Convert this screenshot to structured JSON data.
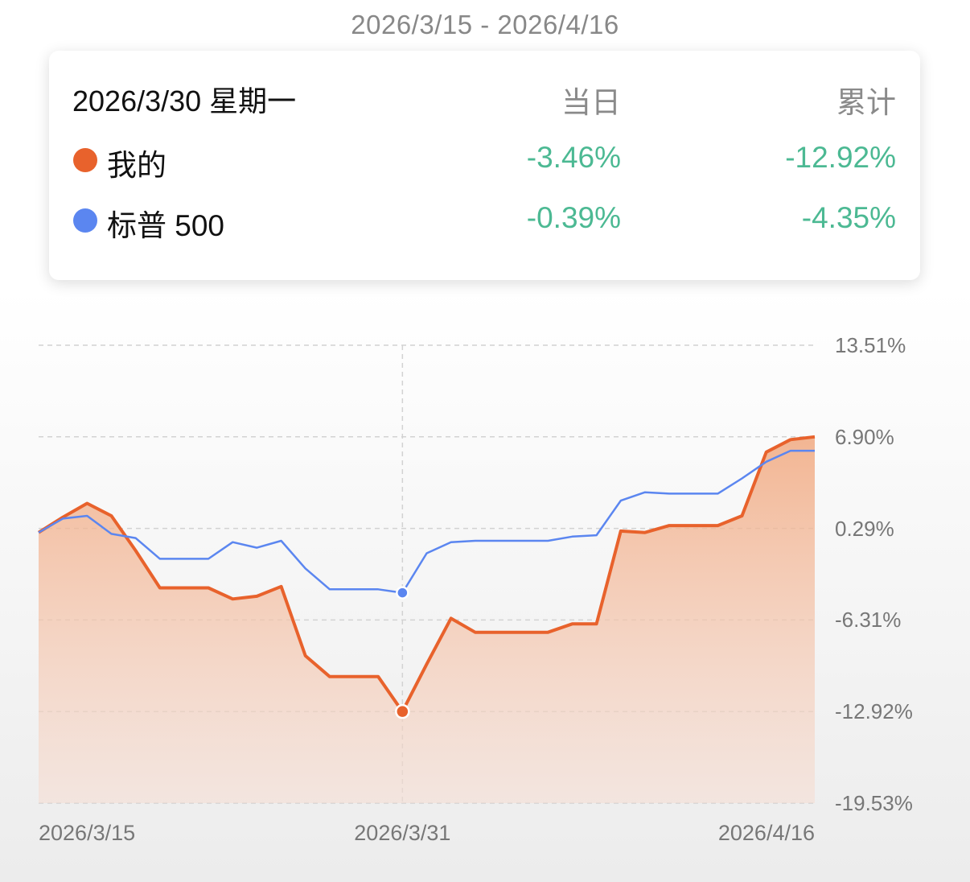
{
  "range_title": "2026/3/15 - 2026/4/16",
  "tooltip": {
    "date": "2026/3/30 星期一",
    "col_daily": "当日",
    "col_cumulative": "累计",
    "rows": [
      {
        "name": "我的",
        "daily": "-3.46%",
        "cumulative": "-12.92%",
        "color": "#e8622c"
      },
      {
        "name": "标普 500",
        "daily": "-0.39%",
        "cumulative": "-4.35%",
        "color": "#5b86f0"
      }
    ]
  },
  "colors": {
    "mine": "#e8622c",
    "sp500": "#5b86f0",
    "positive_text": "#4cb993",
    "grid": "#d2d2d2"
  },
  "chart_data": {
    "type": "area",
    "x_tick_labels": [
      "2026/3/15",
      "2026/3/31",
      "2026/4/16"
    ],
    "y_tick_labels": [
      "13.51%",
      "6.90%",
      "0.29%",
      "-6.31%",
      "-12.92%",
      "-19.53%"
    ],
    "ylim": [
      -19.53,
      13.51
    ],
    "grid": true,
    "highlight_index": 15,
    "x": [
      "2026/3/15",
      "2026/3/16",
      "2026/3/17",
      "2026/3/18",
      "2026/3/19",
      "2026/3/20",
      "2026/3/21",
      "2026/3/22",
      "2026/3/23",
      "2026/3/24",
      "2026/3/25",
      "2026/3/26",
      "2026/3/27",
      "2026/3/28",
      "2026/3/29",
      "2026/3/30",
      "2026/3/31",
      "2026/4/1",
      "2026/4/2",
      "2026/4/3",
      "2026/4/4",
      "2026/4/5",
      "2026/4/6",
      "2026/4/7",
      "2026/4/8",
      "2026/4/9",
      "2026/4/10",
      "2026/4/11",
      "2026/4/12",
      "2026/4/13",
      "2026/4/14",
      "2026/4/15",
      "2026/4/16"
    ],
    "series": [
      {
        "name": "我的",
        "fill": true,
        "values": [
          0,
          1.1,
          2.1,
          1.2,
          -1.3,
          -4.0,
          -4.0,
          -4.0,
          -4.8,
          -4.6,
          -3.9,
          -8.9,
          -10.4,
          -10.4,
          -10.4,
          -12.92,
          -9.5,
          -6.2,
          -7.2,
          -7.2,
          -7.2,
          -7.2,
          -6.6,
          -6.6,
          0.1,
          0,
          0.5,
          0.5,
          0.5,
          1.2,
          5.8,
          6.7,
          6.9
        ]
      },
      {
        "name": "标普 500",
        "fill": false,
        "values": [
          0,
          1.0,
          1.2,
          -0.1,
          -0.4,
          -1.9,
          -1.9,
          -1.9,
          -0.7,
          -1.1,
          -0.6,
          -2.6,
          -4.1,
          -4.1,
          -4.1,
          -4.35,
          -1.5,
          -0.7,
          -0.6,
          -0.6,
          -0.6,
          -0.6,
          -0.3,
          -0.2,
          2.3,
          2.9,
          2.8,
          2.8,
          2.8,
          3.9,
          5.1,
          5.9,
          5.9
        ]
      }
    ]
  }
}
